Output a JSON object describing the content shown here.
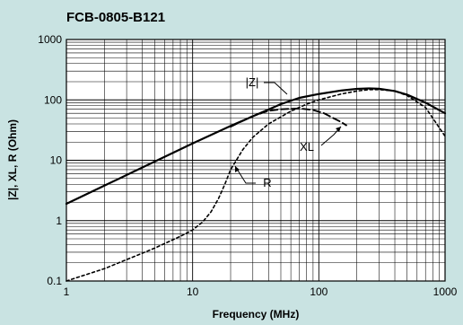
{
  "chart_data": {
    "type": "line",
    "title": "FCB-0805-B121",
    "xlabel": "Frequency (MHz)",
    "ylabel": "|Z|, XL, R (Ohm)",
    "x_scale": "log",
    "y_scale": "log",
    "xlim": [
      1,
      1000
    ],
    "ylim": [
      0.1,
      1000
    ],
    "x_ticks": [
      "1",
      "10",
      "100",
      "1000"
    ],
    "y_ticks": [
      "0.1",
      "1",
      "10",
      "100",
      "1000"
    ],
    "grid": true,
    "series": [
      {
        "name": "|Z|",
        "style": "solid",
        "color": "#000000",
        "x": [
          1,
          2,
          5,
          10,
          20,
          50,
          70,
          100,
          150,
          200,
          250,
          300,
          400,
          500,
          700,
          1000
        ],
        "y": [
          1.9,
          3.8,
          9.5,
          19,
          37,
          85,
          108,
          125,
          143,
          152,
          155,
          153,
          140,
          122,
          90,
          60
        ]
      },
      {
        "name": "XL",
        "style": "dash",
        "color": "#000000",
        "x": [
          20,
          30,
          40,
          50,
          70,
          90,
          110,
          130,
          150,
          165
        ],
        "y": [
          36,
          54,
          66,
          70,
          72,
          68,
          60,
          50,
          43,
          38
        ]
      },
      {
        "name": "R",
        "style": "dot",
        "color": "#000000",
        "x": [
          1,
          2,
          5,
          8,
          10,
          12,
          14,
          16,
          18,
          20,
          25,
          30,
          40,
          60,
          80,
          100,
          150,
          200,
          250,
          300,
          400,
          500,
          700,
          1000
        ],
        "y": [
          0.1,
          0.16,
          0.35,
          0.55,
          0.7,
          0.95,
          1.4,
          2.3,
          4.0,
          7.0,
          15,
          24,
          40,
          65,
          85,
          100,
          125,
          140,
          148,
          148,
          140,
          118,
          75,
          25
        ]
      }
    ],
    "annotations": [
      {
        "label": "|Z|"
      },
      {
        "label": "XL"
      },
      {
        "label": "R"
      }
    ]
  }
}
